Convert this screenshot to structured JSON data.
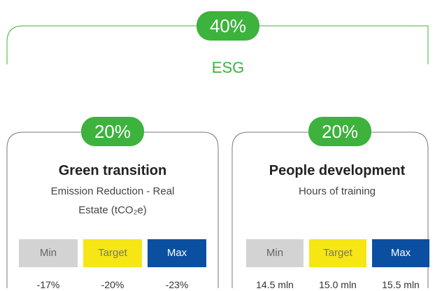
{
  "header": {
    "badge": "40%",
    "label": "ESG"
  },
  "cards": [
    {
      "badge": "20%",
      "title": "Green transition",
      "subtitle": [
        "Emission Reduction - Real",
        "Estate (tCO₂e)"
      ],
      "levels": [
        {
          "name": "Min",
          "value": "-17%"
        },
        {
          "name": "Target",
          "value": "-20%"
        },
        {
          "name": "Max",
          "value": "-23%"
        }
      ]
    },
    {
      "badge": "20%",
      "title": "People development",
      "subtitle": [
        "Hours of training"
      ],
      "levels": [
        {
          "name": "Min",
          "value": "14.5 mln"
        },
        {
          "name": "Target",
          "value": "15.0 mln"
        },
        {
          "name": "Max",
          "value": "15.5 mln"
        }
      ]
    }
  ]
}
